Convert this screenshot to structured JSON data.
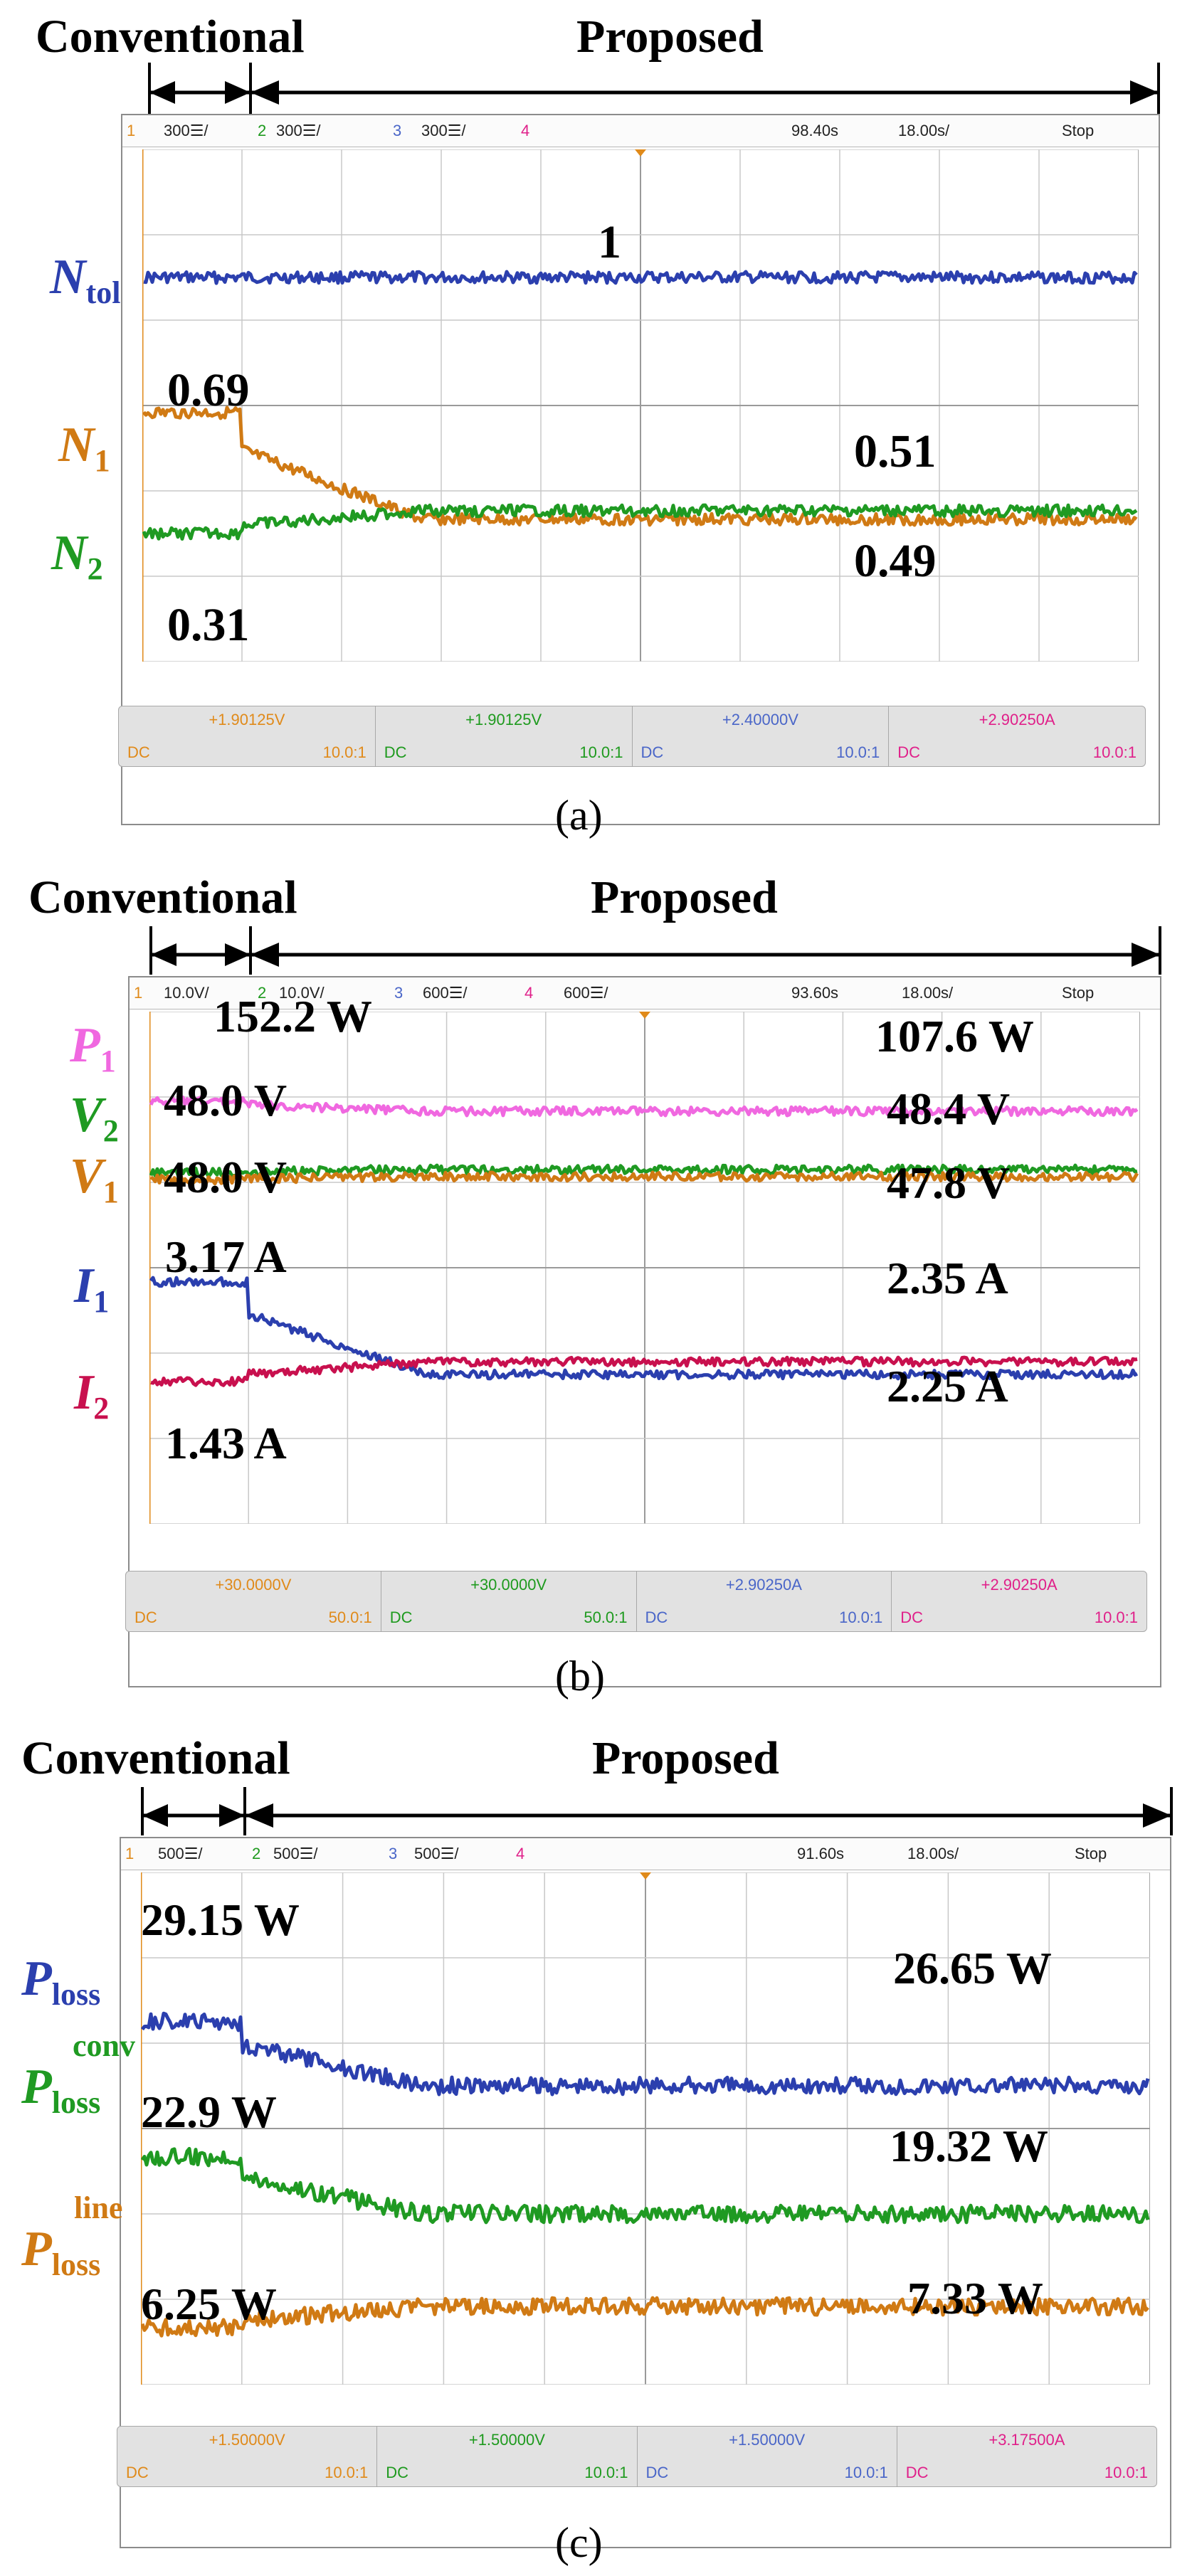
{
  "chart_data": [
    {
      "type": "line",
      "caption": "(a)",
      "header": {
        "left": "Conventional",
        "right": "Proposed"
      },
      "scope": {
        "ch1_index": "1",
        "ch1_scale": "300☰/",
        "ch2_index": "2",
        "ch2_scale": "300☰/",
        "ch3_index": "3",
        "ch3_scale": "300☰/",
        "ch4_index": "4",
        "position": "98.40s",
        "timebase": "18.00s/",
        "status": "Stop"
      },
      "footer": [
        {
          "value": "+1.90125V",
          "coupling": "DC",
          "ratio": "10.0:1",
          "color": "#e08a1a"
        },
        {
          "value": "+1.90125V",
          "coupling": "DC",
          "ratio": "10.0:1",
          "color": "#1e9a1e"
        },
        {
          "value": "+2.40000V",
          "coupling": "DC",
          "ratio": "10.0:1",
          "color": "#4a66c8"
        },
        {
          "value": "+2.90250A",
          "coupling": "DC",
          "ratio": "10.0:1",
          "color": "#e0208a"
        }
      ],
      "x_switch_division": 1,
      "series": [
        {
          "label_main": "N",
          "label_sub": "tol",
          "label_sup": "",
          "color": "#2b3fae",
          "level_before": 1,
          "level_after": 1,
          "noise": 0.15
        },
        {
          "label_main": "N",
          "label_sub": "1",
          "label_sup": "",
          "color": "#d07a14",
          "level_before": 0.69,
          "level_after": 0.51,
          "noise": 0.12
        },
        {
          "label_main": "N",
          "label_sub": "2",
          "label_sup": "",
          "color": "#1f9a22",
          "level_before": 0.31,
          "level_after": 0.49,
          "noise": 0.12
        }
      ],
      "annotations": [
        "1",
        "0.69",
        "0.31",
        "0.51",
        "0.49"
      ]
    },
    {
      "type": "line",
      "caption": "(b)",
      "header": {
        "left": "Conventional",
        "right": "Proposed"
      },
      "scope": {
        "ch1_index": "1",
        "ch1_scale": "10.0V/",
        "ch2_index": "2",
        "ch2_scale": "10.0V/",
        "ch3_index": "3",
        "ch3_scale": "600☰/",
        "ch4_index": "4",
        "ch4_scale": "600☰/",
        "position": "93.60s",
        "timebase": "18.00s/",
        "status": "Stop"
      },
      "footer": [
        {
          "value": "+30.0000V",
          "coupling": "DC",
          "ratio": "50.0:1",
          "color": "#e08a1a"
        },
        {
          "value": "+30.0000V",
          "coupling": "DC",
          "ratio": "50.0:1",
          "color": "#1e9a1e"
        },
        {
          "value": "+2.90250A",
          "coupling": "DC",
          "ratio": "10.0:1",
          "color": "#4a66c8"
        },
        {
          "value": "+2.90250A",
          "coupling": "DC",
          "ratio": "10.0:1",
          "color": "#e0208a"
        }
      ],
      "x_switch_division": 1,
      "series": [
        {
          "label_main": "P",
          "label_sub": "1",
          "label_sup": "",
          "color": "#f068e0",
          "level_before": 152.2,
          "level_after": 107.6,
          "unit": "W"
        },
        {
          "label_main": "V",
          "label_sub": "2",
          "label_sup": "",
          "color": "#1f9a22",
          "level_before": 48.0,
          "level_after": 48.4,
          "unit": "V"
        },
        {
          "label_main": "V",
          "label_sub": "1",
          "label_sup": "",
          "color": "#d07a14",
          "level_before": 48.0,
          "level_after": 47.8,
          "unit": "V"
        },
        {
          "label_main": "I",
          "label_sub": "1",
          "label_sup": "",
          "color": "#2b3fae",
          "level_before": 3.17,
          "level_after": 2.25,
          "unit": "A"
        },
        {
          "label_main": "I",
          "label_sub": "2",
          "label_sup": "",
          "color": "#c8104e",
          "level_before": 1.43,
          "level_after": 2.35,
          "unit": "A"
        }
      ],
      "annotations": [
        "152.2 W",
        "48.0 V",
        "48.0 V",
        "3.17 A",
        "1.43 A",
        "107.6 W",
        "48.4 V",
        "47.8 V",
        "2.35 A",
        "2.25 A"
      ]
    },
    {
      "type": "line",
      "caption": "(c)",
      "header": {
        "left": "Conventional",
        "right": "Proposed"
      },
      "scope": {
        "ch1_index": "1",
        "ch1_scale": "500☰/",
        "ch2_index": "2",
        "ch2_scale": "500☰/",
        "ch3_index": "3",
        "ch3_scale": "500☰/",
        "ch4_index": "4",
        "position": "91.60s",
        "timebase": "18.00s/",
        "status": "Stop"
      },
      "footer": [
        {
          "value": "+1.50000V",
          "coupling": "DC",
          "ratio": "10.0:1",
          "color": "#e08a1a"
        },
        {
          "value": "+1.50000V",
          "coupling": "DC",
          "ratio": "10.0:1",
          "color": "#1e9a1e"
        },
        {
          "value": "+1.50000V",
          "coupling": "DC",
          "ratio": "10.0:1",
          "color": "#4a66c8"
        },
        {
          "value": "+3.17500A",
          "coupling": "DC",
          "ratio": "10.0:1",
          "color": "#e0208a"
        }
      ],
      "x_switch_division": 1,
      "series": [
        {
          "label_main": "P",
          "label_sub": "loss",
          "label_sup": "",
          "color": "#2b3fae",
          "level_before": 29.15,
          "level_after": 26.65,
          "unit": "W"
        },
        {
          "label_main": "P",
          "label_sub": "loss",
          "label_sup": "conv",
          "color": "#1f9a22",
          "level_before": 22.9,
          "level_after": 19.32,
          "unit": "W"
        },
        {
          "label_main": "P",
          "label_sub": "loss",
          "label_sup": "line",
          "color": "#d07a14",
          "level_before": 6.25,
          "level_after": 7.33,
          "unit": "W"
        }
      ],
      "annotations": [
        "29.15 W",
        "22.9 W",
        "6.25 W",
        "26.65 W",
        "19.32 W",
        "7.33 W"
      ]
    }
  ]
}
